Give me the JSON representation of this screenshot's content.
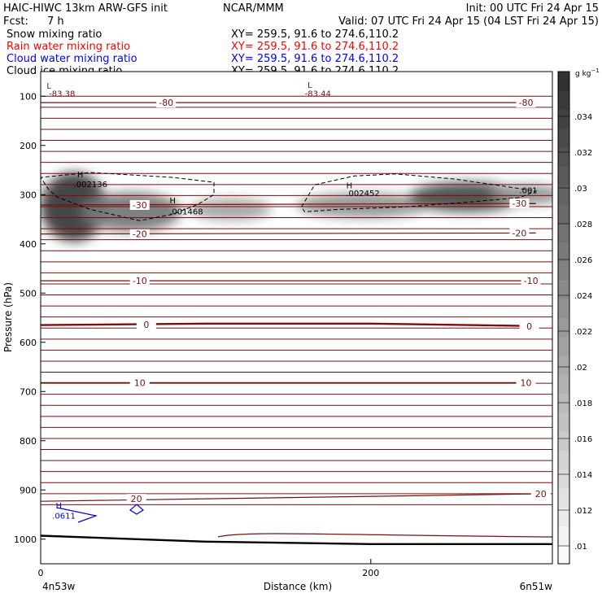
{
  "header": {
    "model": "HAIC-HIWC 13km ARW-GFS init",
    "org": "NCAR/MMM",
    "init": "Init: 00 UTC Fri 24 Apr 15",
    "fcst_label": "Fcst:",
    "fcst_value": "7 h",
    "valid": "Valid: 07 UTC Fri 24 Apr 15 (04 LST Fri 24 Apr 15)"
  },
  "fields": [
    {
      "name": "Snow mixing ratio",
      "xy": "XY= 259.5, 91.6 to 274.6,110.2",
      "color": "#000000"
    },
    {
      "name": "Rain water mixing ratio",
      "xy": "XY= 259.5, 91.6 to 274.6,110.2",
      "color": "#ff0000"
    },
    {
      "name": "Cloud water mixing ratio",
      "xy": "XY= 259.5, 91.6 to 274.6,110.2",
      "color": "#0000ff"
    },
    {
      "name": "Cloud ice mixing ratio",
      "xy": "XY= 259.5, 91.6 to 274.6,110.2",
      "color": "#000000"
    }
  ],
  "colors": {
    "isotherm": "#7a0f0f",
    "cloud_water": "#0000dd",
    "ice": "#000000",
    "terrain": "#000000"
  },
  "chart_data": {
    "type": "heatmap",
    "xlabel": "Distance (km)",
    "ylabel": "Pressure (hPa)",
    "xlim": [
      0,
      310
    ],
    "ylim": [
      1050,
      50
    ],
    "x_ticks": [
      0,
      200
    ],
    "y_ticks": [
      100,
      200,
      300,
      400,
      500,
      600,
      700,
      800,
      900,
      1000
    ],
    "x_left_label": "4n53w",
    "x_right_label": "6n51w",
    "colorbar": {
      "unit_main": "g kg",
      "unit_exp": "−1",
      "ticks": [
        ".01",
        ".012",
        ".014",
        ".016",
        ".018",
        ".02",
        ".022",
        ".024",
        ".026",
        ".028",
        ".03",
        ".032",
        ".034"
      ],
      "values": [
        0.01,
        0.012,
        0.014,
        0.016,
        0.018,
        0.02,
        0.022,
        0.024,
        0.026,
        0.028,
        0.03,
        0.032,
        0.034
      ],
      "range": [
        0.009,
        0.0365
      ]
    },
    "snow_blobs": [
      {
        "x": 20,
        "p": 325,
        "rx": 20,
        "rp": 70,
        "intensity": 0.95
      },
      {
        "x": 55,
        "p": 335,
        "rx": 30,
        "rp": 40,
        "intensity": 0.6
      },
      {
        "x": 115,
        "p": 330,
        "rx": 25,
        "rp": 22,
        "intensity": 0.35
      },
      {
        "x": 195,
        "p": 322,
        "rx": 40,
        "rp": 25,
        "intensity": 0.45
      },
      {
        "x": 258,
        "p": 305,
        "rx": 35,
        "rp": 30,
        "intensity": 0.85
      },
      {
        "x": 295,
        "p": 300,
        "rx": 22,
        "rp": 20,
        "intensity": 0.45
      }
    ],
    "isotherms": [
      {
        "label": "-80",
        "points": [
          [
            0,
            113
          ],
          [
            300,
            113
          ]
        ],
        "labels_at": [
          [
            76,
            113
          ],
          [
            294,
            113
          ]
        ],
        "thick": false
      },
      {
        "label": "-30",
        "points": [
          [
            0,
            321
          ],
          [
            300,
            318
          ]
        ],
        "labels_at": [
          [
            60,
            321
          ],
          [
            290,
            318
          ]
        ],
        "thick": false
      },
      {
        "label": "-20",
        "points": [
          [
            0,
            380
          ],
          [
            300,
            378
          ]
        ],
        "labels_at": [
          [
            60,
            380
          ],
          [
            290,
            378
          ]
        ],
        "thick": false
      },
      {
        "label": "-10",
        "points": [
          [
            0,
            475
          ],
          [
            300,
            475
          ]
        ],
        "labels_at": [
          [
            60,
            475
          ],
          [
            297,
            475
          ]
        ],
        "thick": false
      },
      {
        "label": "0",
        "points": [
          [
            0,
            565
          ],
          [
            100,
            562
          ],
          [
            200,
            562
          ],
          [
            300,
            567
          ]
        ],
        "labels_at": [
          [
            64,
            564
          ],
          [
            296,
            567
          ]
        ],
        "thick": true
      },
      {
        "label": "10",
        "points": [
          [
            0,
            682
          ],
          [
            300,
            682
          ]
        ],
        "labels_at": [
          [
            60,
            682
          ],
          [
            294,
            682
          ]
        ],
        "thick": false
      },
      {
        "label": "20",
        "points": [
          [
            0,
            923
          ],
          [
            300,
            908
          ]
        ],
        "labels_at": [
          [
            58,
            918
          ],
          [
            303,
            908
          ]
        ],
        "thick": false
      }
    ],
    "ice_contours": [
      {
        "points": [
          [
            5,
            290
          ],
          [
            0,
            265
          ],
          [
            30,
            255
          ],
          [
            80,
            265
          ],
          [
            105,
            275
          ],
          [
            105,
            300
          ],
          [
            95,
            320
          ],
          [
            80,
            340
          ],
          [
            60,
            353
          ],
          [
            30,
            330
          ],
          [
            10,
            305
          ],
          [
            5,
            290
          ]
        ]
      },
      {
        "points": [
          [
            158,
            325
          ],
          [
            166,
            280
          ],
          [
            190,
            262
          ],
          [
            215,
            258
          ],
          [
            250,
            268
          ],
          [
            285,
            285
          ],
          [
            300,
            293
          ],
          [
            290,
            306
          ],
          [
            260,
            315
          ],
          [
            220,
            325
          ],
          [
            180,
            330
          ],
          [
            160,
            335
          ],
          [
            158,
            325
          ]
        ]
      }
    ],
    "isotherm_count": 38,
    "extrema": [
      {
        "type": "L",
        "x": 5,
        "p": 85,
        "value": "-83.38",
        "vx": 5,
        "vp": 100
      },
      {
        "type": "L",
        "x": 163,
        "p": 83,
        "value": "-83.44",
        "vx": 160,
        "vp": 100
      },
      {
        "type": "H",
        "x": 24,
        "p": 265,
        "value": ".002136",
        "vx": 20,
        "vp": 285
      },
      {
        "type": "H",
        "x": 80,
        "p": 318,
        "value": ".001468",
        "vx": 78,
        "vp": 340
      },
      {
        "type": "H",
        "x": 187,
        "p": 287,
        "value": ".002452",
        "vx": 185,
        "vp": 303
      },
      {
        "type": "H",
        "x": 11,
        "p": 938,
        "value": ".0611",
        "vx": 7,
        "vp": 958
      },
      {
        "type": "",
        "x": 290,
        "p": 300,
        "value": ".001",
        "vx": 290,
        "vp": 297
      }
    ],
    "terrain": [
      [
        0,
        993
      ],
      [
        100,
        1005
      ],
      [
        200,
        1010
      ],
      [
        310,
        1010
      ]
    ]
  }
}
